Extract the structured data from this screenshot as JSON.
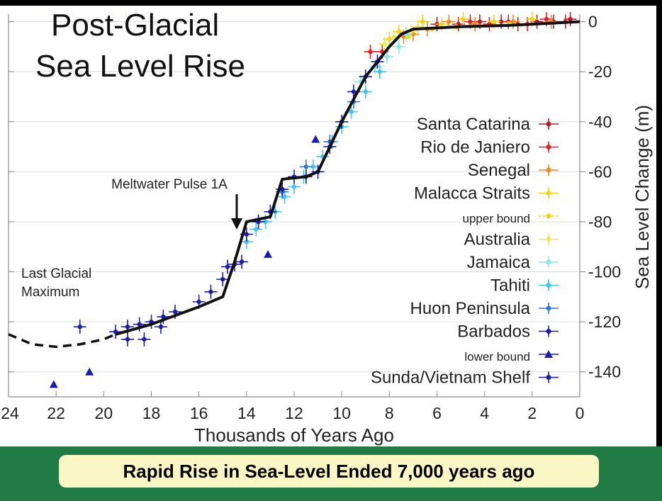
{
  "chart_data": {
    "type": "scatter",
    "title_lines": [
      "Post-Glacial",
      "Sea Level Rise"
    ],
    "xlabel": "Thousands of Years Ago",
    "ylabel": "Sea Level Change (m)",
    "xlim": [
      24,
      0
    ],
    "ylim": [
      -150,
      3
    ],
    "x_ticks": [
      24,
      22,
      20,
      18,
      16,
      14,
      12,
      10,
      8,
      6,
      4,
      2,
      0
    ],
    "y_ticks": [
      0,
      -20,
      -40,
      -60,
      -80,
      -100,
      -120,
      -140
    ],
    "grid": true,
    "legend_position": "right",
    "annotations": {
      "meltwater": "Meltwater Pulse 1A",
      "lgm_line1": "Last Glacial",
      "lgm_line2": "Maximum"
    },
    "trend_line": {
      "x": [
        19.5,
        18,
        16,
        15,
        14.5,
        14,
        13.5,
        13,
        12.5,
        11.5,
        11,
        10,
        9,
        8,
        7.5,
        7,
        5,
        3,
        1,
        0
      ],
      "y": [
        -125,
        -121,
        -114,
        -110,
        -96,
        -80,
        -79,
        -78,
        -63,
        -62,
        -60,
        -40,
        -22,
        -10,
        -5,
        -3,
        -2,
        -1.5,
        -0.5,
        0
      ]
    },
    "lgm_extrapolation": {
      "x": [
        24,
        23,
        22,
        21,
        20,
        19.5
      ],
      "y": [
        -125,
        -129,
        -130,
        -129,
        -127,
        -125
      ]
    },
    "series": [
      {
        "name": "Santa Catarina",
        "color": "#b0202a",
        "marker": "cross",
        "x": [
          0.4,
          1.1,
          1.8,
          2.6,
          3.3,
          4.2,
          5.1,
          6.0
        ],
        "y": [
          1,
          0,
          0,
          -1,
          0,
          0,
          -1,
          -1
        ]
      },
      {
        "name": "Rio de Janiero",
        "color": "#e0242a",
        "marker": "cross",
        "x": [
          0.6,
          1.4,
          2.2,
          3.0,
          3.8,
          4.6,
          8.8,
          8.3
        ],
        "y": [
          0,
          1,
          -1,
          0,
          -1,
          0,
          -12,
          -12
        ]
      },
      {
        "name": "Senegal",
        "color": "#f08a1c",
        "marker": "cross",
        "x": [
          1.2,
          2.8,
          4.4,
          5.5,
          6.4,
          7.0,
          7.4
        ],
        "y": [
          0,
          0,
          -1,
          0,
          -3,
          -5,
          -6
        ]
      },
      {
        "name": "Malacca Straits",
        "color": "#f2d21f",
        "marker": "cross",
        "x": [
          2.0,
          3.6,
          4.9,
          5.8,
          6.6,
          7.6,
          8.0
        ],
        "y": [
          1,
          0,
          1,
          -1,
          0,
          -4,
          -7
        ]
      },
      {
        "name": "upper bound",
        "color": "#f2d21f",
        "marker": "dot",
        "x": [
          3.0,
          5.2,
          6.2,
          7.2
        ],
        "y": [
          -1,
          -2,
          -3,
          -6
        ]
      },
      {
        "name": "Australia",
        "color": "#ecec5a",
        "marker": "cross",
        "x": [
          6.8,
          7.1,
          7.8,
          8.2
        ],
        "y": [
          -2,
          -4,
          -6,
          -9
        ]
      },
      {
        "name": "Jamaica",
        "color": "#8ee6e0",
        "marker": "cross",
        "x": [
          7.3,
          7.6,
          8.1,
          8.6,
          9.2
        ],
        "y": [
          -5,
          -10,
          -14,
          -18,
          -24
        ]
      },
      {
        "name": "Tahiti",
        "color": "#3fc6ef",
        "marker": "cross",
        "x": [
          8.4,
          9.0,
          9.6,
          10.0,
          10.4,
          10.8,
          11.2,
          11.6,
          12.0,
          12.4,
          12.8,
          13.2,
          13.6,
          14.0
        ],
        "y": [
          -20,
          -28,
          -36,
          -42,
          -48,
          -54,
          -58,
          -62,
          -66,
          -70,
          -76,
          -80,
          -83,
          -88
        ]
      },
      {
        "name": "Huon Peninsula",
        "color": "#2f79d6",
        "marker": "cross",
        "x": [
          9.5,
          10.5,
          11.5,
          12.5,
          13.5
        ],
        "y": [
          -32,
          -48,
          -58,
          -68,
          -80
        ]
      },
      {
        "name": "Barbados",
        "color": "#1c1ca8",
        "marker": "cross",
        "x": [
          8.5,
          9.0,
          9.5,
          10.0,
          10.5,
          11.0,
          11.5,
          12.0,
          12.5,
          13.0,
          13.5,
          14.0,
          14.2,
          14.5,
          14.8,
          15.0,
          15.5,
          16.0,
          17.0,
          17.5,
          18.0,
          18.5,
          19.0,
          19.5
        ],
        "y": [
          -16,
          -22,
          -28,
          -40,
          -50,
          -60,
          -62,
          -62,
          -67,
          -76,
          -80,
          -85,
          -96,
          -97,
          -98,
          -103,
          -108,
          -112,
          -116,
          -118,
          -120,
          -121,
          -122,
          -124
        ]
      },
      {
        "name": "lower bound",
        "color": "#1c1ca8",
        "marker": "triangle",
        "x": [
          22.1,
          20.6,
          11.1,
          13.1
        ],
        "y": [
          -145,
          -140,
          -47,
          -93
        ]
      },
      {
        "name": "Sunda/Vietnam Shelf",
        "color": "#1c1ca8",
        "marker": "cross",
        "x": [
          21.0,
          19.0,
          18.3,
          17.6
        ],
        "y": [
          -122,
          -127,
          -127,
          -122
        ]
      }
    ]
  },
  "caption": "Rapid Rise in Sea-Level Ended 7,000 years ago",
  "colors": {
    "banner": "#1f7a43",
    "caption_bg": "#fbf7c4",
    "trend": "#111111"
  }
}
